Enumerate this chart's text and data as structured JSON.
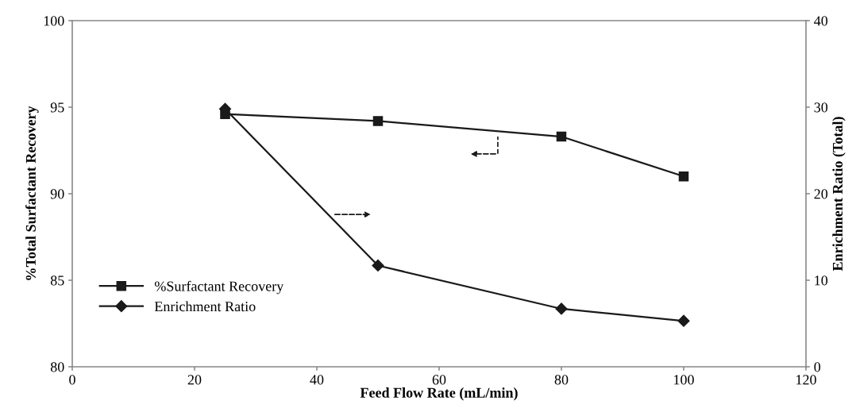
{
  "chart_data": {
    "type": "line",
    "xlabel": "Feed Flow Rate (mL/min)",
    "ylabel": "%Total Surfactant Recovery",
    "y2label": "Enrichment Ratio (Total)",
    "x": [
      25,
      50,
      80,
      100
    ],
    "series": [
      {
        "name": "%Surfactant Recovery",
        "color": "#1a1a1a",
        "marker": "square",
        "values": [
          94.6,
          94.2,
          93.3,
          91.0
        ]
      },
      {
        "name": "Enrichment Ratio",
        "color": "#1a1a1a",
        "marker": "diamond",
        "axis": "y2",
        "values": [
          29.8,
          11.7,
          6.7,
          5.3
        ]
      }
    ],
    "xlim": [
      0,
      120
    ],
    "xticks": [
      0,
      20,
      40,
      60,
      80,
      100,
      120
    ],
    "ylim": [
      80,
      100
    ],
    "yticks": [
      80,
      85,
      90,
      95,
      100
    ],
    "y2lim": [
      0,
      40
    ],
    "y2ticks": [
      0,
      10,
      20,
      30,
      40
    ],
    "grid": false,
    "legend": "left",
    "line_style": "solid"
  }
}
